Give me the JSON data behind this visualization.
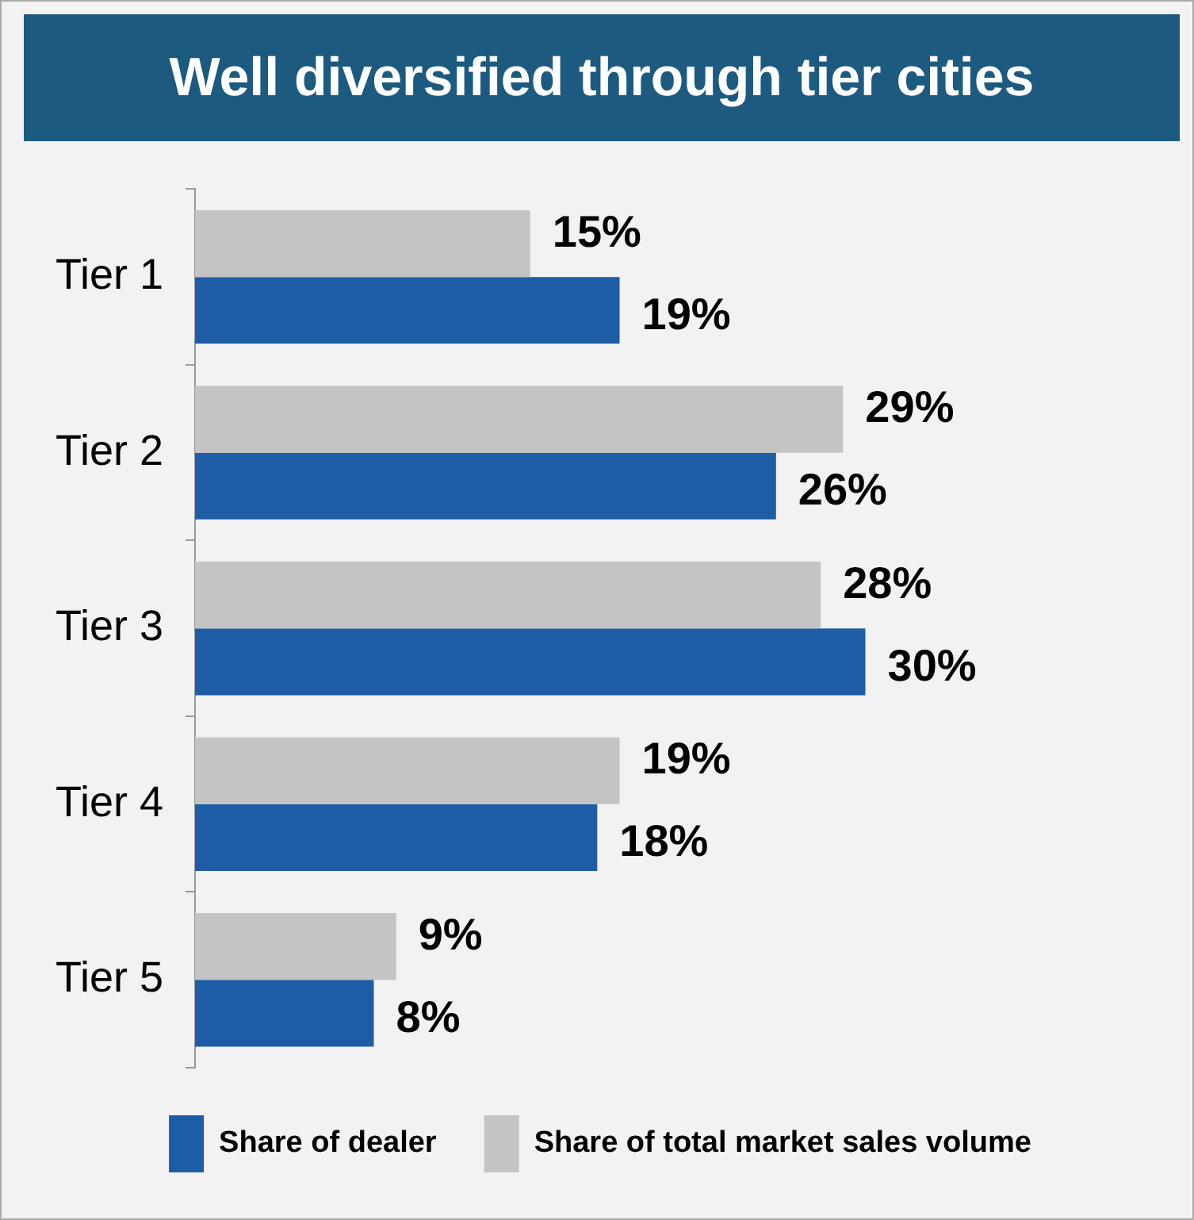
{
  "chart_data": {
    "type": "bar",
    "orientation": "horizontal",
    "title": "Well diversified through tier cities",
    "categories": [
      "Tier 1",
      "Tier 2",
      "Tier 3",
      "Tier 4",
      "Tier 5"
    ],
    "series": [
      {
        "name": "Share of total market sales volume",
        "color": "#c4c4c4",
        "values": [
          15,
          29,
          28,
          19,
          9
        ],
        "value_labels": [
          "15%",
          "29%",
          "28%",
          "19%",
          "9%"
        ]
      },
      {
        "name": "Share of dealer",
        "color": "#1f5ca6",
        "values": [
          19,
          26,
          30,
          18,
          8
        ],
        "value_labels": [
          "19%",
          "26%",
          "30%",
          "18%",
          "8%"
        ]
      }
    ],
    "legend": "bottom",
    "grid": false
  }
}
